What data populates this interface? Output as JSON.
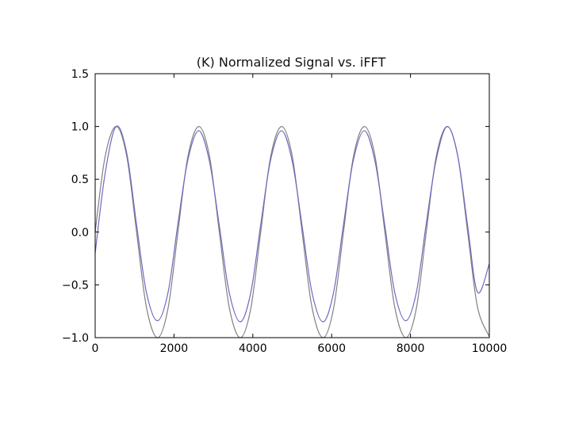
{
  "chart_data": {
    "type": "line",
    "title": "(K) Normalized Signal vs. iFFT",
    "xlabel": "",
    "ylabel": "",
    "xlim": [
      0,
      10000
    ],
    "ylim": [
      -1.0,
      1.5
    ],
    "xticks": [
      0,
      2000,
      4000,
      6000,
      8000,
      10000
    ],
    "xtick_labels": [
      "0",
      "2000",
      "4000",
      "6000",
      "8000",
      "10000"
    ],
    "yticks": [
      -1.0,
      -0.5,
      0.0,
      0.5,
      1.0,
      1.5
    ],
    "ytick_labels": [
      "−1.0",
      "−0.5",
      "0.0",
      "0.5",
      "1.0",
      "1.5"
    ],
    "grid": false,
    "series": [
      {
        "color": "#808080",
        "x": [
          0,
          250,
          530,
          800,
          1050,
          1300,
          1580,
          1850,
          2100,
          2350,
          2630,
          2900,
          3150,
          3400,
          3680,
          3950,
          4200,
          4450,
          4730,
          5000,
          5250,
          5500,
          5780,
          6050,
          6300,
          6550,
          6830,
          7100,
          7350,
          7600,
          7880,
          8150,
          8400,
          8650,
          8930,
          9200,
          9450,
          9700,
          10000
        ],
        "y": [
          0.0,
          0.71,
          1.0,
          0.72,
          0.0,
          -0.71,
          -1.0,
          -0.72,
          0.0,
          0.71,
          1.0,
          0.72,
          0.0,
          -0.71,
          -1.0,
          -0.72,
          0.0,
          0.71,
          1.0,
          0.72,
          0.0,
          -0.71,
          -1.0,
          -0.72,
          0.0,
          0.71,
          1.0,
          0.72,
          0.0,
          -0.71,
          -1.0,
          -0.72,
          0.0,
          0.71,
          1.0,
          0.72,
          0.0,
          -0.71,
          -0.99
        ]
      },
      {
        "color": "#6a6ac0",
        "x": [
          0,
          250,
          530,
          800,
          1050,
          1300,
          1580,
          1850,
          2100,
          2350,
          2630,
          2900,
          3150,
          3400,
          3680,
          3950,
          4200,
          4450,
          4730,
          5000,
          5250,
          5500,
          5780,
          6050,
          6300,
          6550,
          6830,
          7100,
          7350,
          7600,
          7880,
          8150,
          8400,
          8650,
          8930,
          9200,
          9450,
          9700,
          10000
        ],
        "y": [
          -0.2,
          0.55,
          1.0,
          0.75,
          0.07,
          -0.57,
          -0.84,
          -0.57,
          0.08,
          0.68,
          0.96,
          0.67,
          0.06,
          -0.57,
          -0.85,
          -0.57,
          0.07,
          0.68,
          0.96,
          0.67,
          0.06,
          -0.57,
          -0.85,
          -0.57,
          0.07,
          0.68,
          0.96,
          0.67,
          0.06,
          -0.57,
          -0.84,
          -0.57,
          0.08,
          0.68,
          1.0,
          0.72,
          0.06,
          -0.57,
          -0.3
        ]
      }
    ]
  }
}
